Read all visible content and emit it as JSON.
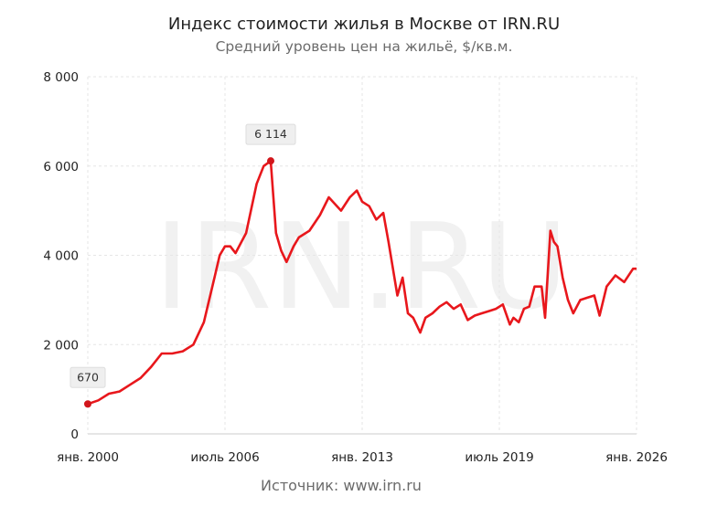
{
  "chart_data": {
    "type": "line",
    "title": "Индекс стоимости жилья в Москве от IRN.RU",
    "subtitle": "Средний уровень цен на жильё, $/кв.м.",
    "source": "Источник: www.irn.ru",
    "watermark": "IRN.RU",
    "x_ticks": [
      "янв. 2000",
      "июль 2006",
      "янв. 2013",
      "июль 2019",
      "янв. 2026"
    ],
    "y_ticks": [
      "0",
      "2 000",
      "4 000",
      "6 000",
      "8 000"
    ],
    "ylim": [
      0,
      8000
    ],
    "xlim": [
      "2000-01",
      "2026-01"
    ],
    "grid": true,
    "line_color": "#e8171c",
    "annotations": [
      {
        "x": "2000-01",
        "y": 670,
        "label": "670"
      },
      {
        "x": "2008-09",
        "y": 6114,
        "label": "6 114"
      }
    ],
    "series": [
      {
        "x": [
          "1999-11",
          "2000-01",
          "2000-07",
          "2001-01",
          "2001-07",
          "2002-01",
          "2002-07",
          "2003-01",
          "2003-07",
          "2004-01",
          "2004-07",
          "2005-01",
          "2005-07",
          "2006-01",
          "2006-04",
          "2006-07",
          "2006-10",
          "2007-01",
          "2007-07",
          "2008-01",
          "2008-05",
          "2008-09",
          "2008-12",
          "2009-03",
          "2009-06",
          "2009-10",
          "2010-01",
          "2010-07",
          "2011-01",
          "2011-06",
          "2012-01",
          "2012-06",
          "2012-10",
          "2013-01",
          "2013-05",
          "2013-09",
          "2014-01",
          "2014-04",
          "2014-09",
          "2014-12",
          "2015-03",
          "2015-06",
          "2015-10",
          "2016-01",
          "2016-05",
          "2016-09",
          "2017-01",
          "2017-05",
          "2017-09",
          "2018-01",
          "2018-05",
          "2018-09",
          "2019-01",
          "2019-05",
          "2019-09",
          "2020-01",
          "2020-03",
          "2020-06",
          "2020-09",
          "2020-12",
          "2021-03",
          "2021-07",
          "2021-09",
          "2021-12",
          "2022-02",
          "2022-04",
          "2022-07",
          "2022-10",
          "2023-01",
          "2023-05",
          "2023-09",
          "2024-01",
          "2024-04",
          "2024-08",
          "2025-01",
          "2025-06",
          "2025-11",
          "2026-01"
        ],
        "y": [
          690,
          670,
          750,
          900,
          950,
          1100,
          1250,
          1500,
          1800,
          1800,
          1850,
          2000,
          2500,
          3500,
          4000,
          4200,
          4200,
          4050,
          4500,
          5600,
          6000,
          6114,
          4500,
          4100,
          3850,
          4200,
          4400,
          4550,
          4900,
          5300,
          5000,
          5300,
          5450,
          5200,
          5100,
          4800,
          4950,
          4300,
          3100,
          3500,
          2700,
          2600,
          2270,
          2600,
          2700,
          2850,
          2950,
          2800,
          2900,
          2550,
          2650,
          2700,
          2750,
          2800,
          2900,
          2450,
          2600,
          2500,
          2800,
          2850,
          3300,
          3300,
          2600,
          4550,
          4300,
          4200,
          3500,
          3000,
          2700,
          3000,
          3050,
          3100,
          2650,
          3300,
          3550,
          3400,
          3700,
          3700
        ]
      }
    ]
  }
}
